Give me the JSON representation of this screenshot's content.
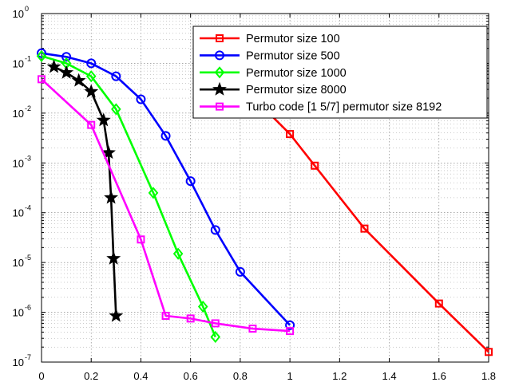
{
  "chart_data": {
    "type": "line",
    "xlim": [
      0,
      1.8
    ],
    "ylim": [
      1e-07,
      1
    ],
    "yscale": "log",
    "grid": true,
    "legend_position": "top-right",
    "x_ticks": [
      "0",
      "0.2",
      "0.4",
      "0.6",
      "0.8",
      "1",
      "1.2",
      "1.4",
      "1.6",
      "1.8"
    ],
    "y_ticks": [
      {
        "base": "10",
        "exp": "0"
      },
      {
        "base": "10",
        "exp": "-1"
      },
      {
        "base": "10",
        "exp": "-2"
      },
      {
        "base": "10",
        "exp": "-3"
      },
      {
        "base": "10",
        "exp": "-4"
      },
      {
        "base": "10",
        "exp": "-5"
      },
      {
        "base": "10",
        "exp": "-6"
      },
      {
        "base": "10",
        "exp": "-7"
      }
    ],
    "series": [
      {
        "name": "Permutor size 100",
        "color": "#ff0000",
        "marker": "square",
        "points": [
          [
            0.8,
            0.085
          ],
          [
            0.9,
            0.012
          ],
          [
            1.0,
            0.0038
          ],
          [
            1.1,
            0.00088
          ],
          [
            1.3,
            4.8e-05
          ],
          [
            1.6,
            1.5e-06
          ],
          [
            1.8,
            1.6e-07
          ]
        ]
      },
      {
        "name": "Permutor size 500",
        "color": "#0000ff",
        "marker": "circle",
        "points": [
          [
            0.0,
            0.16
          ],
          [
            0.1,
            0.135
          ],
          [
            0.2,
            0.1
          ],
          [
            0.3,
            0.055
          ],
          [
            0.4,
            0.019
          ],
          [
            0.5,
            0.0035
          ],
          [
            0.6,
            0.00043
          ],
          [
            0.7,
            4.5e-05
          ],
          [
            0.8,
            6.5e-06
          ],
          [
            1.0,
            5.5e-07
          ]
        ]
      },
      {
        "name": "Permutor size 1000",
        "color": "#00ff00",
        "marker": "diamond",
        "points": [
          [
            0.0,
            0.14
          ],
          [
            0.1,
            0.1
          ],
          [
            0.2,
            0.055
          ],
          [
            0.3,
            0.012
          ],
          [
            0.45,
            0.00025
          ],
          [
            0.55,
            1.5e-05
          ],
          [
            0.65,
            1.3e-06
          ],
          [
            0.7,
            3.2e-07
          ]
        ]
      },
      {
        "name": "Permutor size 8000",
        "color": "#000000",
        "marker": "star",
        "points": [
          [
            0.05,
            0.085
          ],
          [
            0.1,
            0.065
          ],
          [
            0.15,
            0.045
          ],
          [
            0.2,
            0.027
          ],
          [
            0.25,
            0.0072
          ],
          [
            0.27,
            0.0016
          ],
          [
            0.28,
            0.0002
          ],
          [
            0.29,
            1.2e-05
          ],
          [
            0.3,
            8.5e-07
          ]
        ]
      },
      {
        "name": "Turbo code [1 5/7] permutor size 8192",
        "color": "#ff00ff",
        "marker": "square",
        "points": [
          [
            0.0,
            0.048
          ],
          [
            0.2,
            0.0058
          ],
          [
            0.4,
            2.9e-05
          ],
          [
            0.5,
            8.5e-07
          ],
          [
            0.6,
            7.5e-07
          ],
          [
            0.7,
            6e-07
          ],
          [
            0.85,
            4.7e-07
          ],
          [
            1.0,
            4.2e-07
          ]
        ]
      }
    ]
  }
}
